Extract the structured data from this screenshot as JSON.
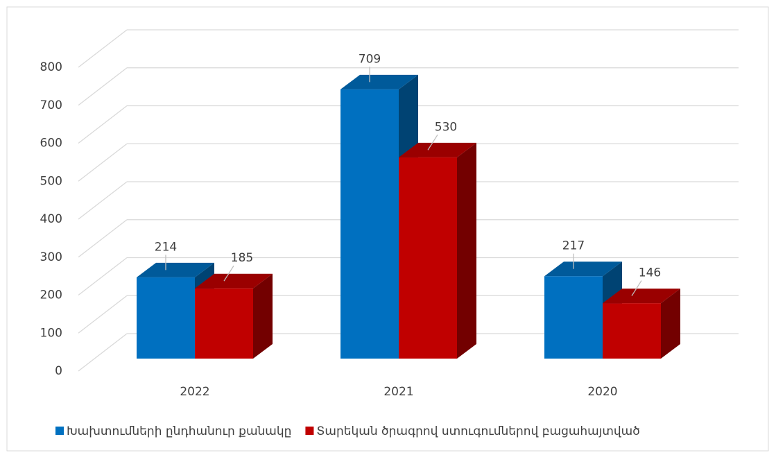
{
  "chart_data": {
    "type": "bar3d",
    "categories": [
      "2022",
      "2021",
      "2020"
    ],
    "series": [
      {
        "name": "Խախտումների ընդհանուր քանակը",
        "color": "#0070c0",
        "values": [
          214,
          709,
          217
        ]
      },
      {
        "name": "Տարեկան ծրագրով ստուգումներով բացահայտված",
        "color": "#c00000",
        "values": [
          185,
          530,
          146
        ]
      }
    ],
    "ylim": [
      0,
      800
    ],
    "yticks": [
      0,
      100,
      200,
      300,
      400,
      500,
      600,
      700,
      800
    ],
    "grid": true
  }
}
